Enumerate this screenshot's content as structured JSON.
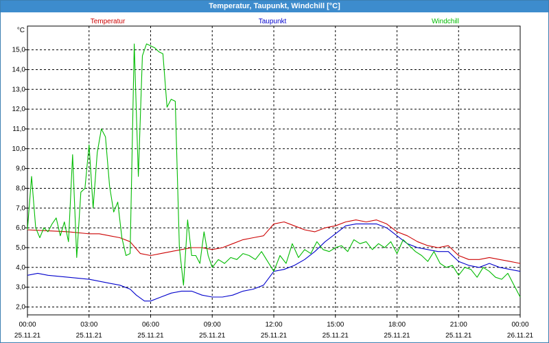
{
  "window": {
    "title": "Temperatur, Taupunkt, Windchill [°C]"
  },
  "chart_data": {
    "type": "line",
    "title": "Temperatur, Taupunkt, Windchill [°C]",
    "ylabel": "°C",
    "ylim": [
      1.6,
      16.2
    ],
    "xlim": [
      0,
      24
    ],
    "grid": true,
    "legend_position": "top",
    "y_ticks": [
      "2,0",
      "3,0",
      "4,0",
      "5,0",
      "6,0",
      "7,0",
      "8,0",
      "9,0",
      "10,0",
      "11,0",
      "12,0",
      "13,0",
      "14,0",
      "15,0"
    ],
    "x_ticks": [
      {
        "time": "00:00",
        "date": "25.11.21"
      },
      {
        "time": "03:00",
        "date": "25.11.21"
      },
      {
        "time": "06:00",
        "date": "25.11.21"
      },
      {
        "time": "09:00",
        "date": "25.11.21"
      },
      {
        "time": "12:00",
        "date": "25.11.21"
      },
      {
        "time": "15:00",
        "date": "25.11.21"
      },
      {
        "time": "18:00",
        "date": "25.11.21"
      },
      {
        "time": "21:00",
        "date": "25.11.21"
      },
      {
        "time": "00:00",
        "date": "26.11.21"
      }
    ],
    "x_unit": "hours since 25.11.21 00:00",
    "series": [
      {
        "name": "Temperatur",
        "color": "#cc0000",
        "points": [
          [
            0,
            5.9
          ],
          [
            1,
            5.85
          ],
          [
            2,
            5.8
          ],
          [
            3,
            5.7
          ],
          [
            3.5,
            5.7
          ],
          [
            4,
            5.6
          ],
          [
            4.5,
            5.5
          ],
          [
            5,
            5.3
          ],
          [
            5.5,
            4.7
          ],
          [
            6,
            4.6
          ],
          [
            6.5,
            4.7
          ],
          [
            7,
            4.8
          ],
          [
            7.5,
            4.9
          ],
          [
            8,
            5.0
          ],
          [
            8.5,
            5.0
          ],
          [
            9,
            4.9
          ],
          [
            9.5,
            5.0
          ],
          [
            10,
            5.2
          ],
          [
            10.5,
            5.4
          ],
          [
            11,
            5.5
          ],
          [
            11.5,
            5.6
          ],
          [
            12,
            6.2
          ],
          [
            12.5,
            6.3
          ],
          [
            13,
            6.1
          ],
          [
            13.5,
            5.9
          ],
          [
            14,
            5.8
          ],
          [
            14.5,
            6.0
          ],
          [
            15,
            6.1
          ],
          [
            15.5,
            6.3
          ],
          [
            16,
            6.4
          ],
          [
            16.5,
            6.3
          ],
          [
            17,
            6.4
          ],
          [
            17.5,
            6.2
          ],
          [
            18,
            5.8
          ],
          [
            18.5,
            5.6
          ],
          [
            19,
            5.3
          ],
          [
            19.5,
            5.1
          ],
          [
            20,
            5.0
          ],
          [
            20.5,
            5.1
          ],
          [
            21,
            4.6
          ],
          [
            21.5,
            4.4
          ],
          [
            22,
            4.4
          ],
          [
            22.5,
            4.5
          ],
          [
            23,
            4.4
          ],
          [
            23.5,
            4.3
          ],
          [
            24,
            4.2
          ]
        ]
      },
      {
        "name": "Taupunkt",
        "color": "#0000cc",
        "points": [
          [
            0,
            3.6
          ],
          [
            0.5,
            3.7
          ],
          [
            1,
            3.6
          ],
          [
            2,
            3.5
          ],
          [
            3,
            3.4
          ],
          [
            4,
            3.2
          ],
          [
            4.5,
            3.1
          ],
          [
            5,
            2.9
          ],
          [
            5.3,
            2.6
          ],
          [
            5.7,
            2.3
          ],
          [
            6,
            2.3
          ],
          [
            6.5,
            2.5
          ],
          [
            7,
            2.7
          ],
          [
            7.5,
            2.8
          ],
          [
            8,
            2.8
          ],
          [
            8.5,
            2.6
          ],
          [
            9,
            2.5
          ],
          [
            9.5,
            2.5
          ],
          [
            10,
            2.6
          ],
          [
            10.5,
            2.8
          ],
          [
            11,
            2.9
          ],
          [
            11.5,
            3.1
          ],
          [
            12,
            3.8
          ],
          [
            12.5,
            3.9
          ],
          [
            13,
            4.1
          ],
          [
            13.5,
            4.4
          ],
          [
            14,
            4.8
          ],
          [
            14.5,
            5.3
          ],
          [
            15,
            5.7
          ],
          [
            15.5,
            6.1
          ],
          [
            16,
            6.2
          ],
          [
            16.5,
            6.2
          ],
          [
            17,
            6.2
          ],
          [
            17.5,
            6.0
          ],
          [
            18,
            5.6
          ],
          [
            18.5,
            5.2
          ],
          [
            19,
            5.0
          ],
          [
            19.5,
            4.9
          ],
          [
            20,
            4.8
          ],
          [
            20.5,
            4.8
          ],
          [
            21,
            4.3
          ],
          [
            21.5,
            4.1
          ],
          [
            22,
            4.0
          ],
          [
            22.5,
            4.2
          ],
          [
            23,
            4.0
          ],
          [
            23.5,
            3.9
          ],
          [
            24,
            3.8
          ]
        ]
      },
      {
        "name": "Windchill",
        "color": "#00bb00",
        "points": [
          [
            0,
            5.9
          ],
          [
            0.2,
            8.6
          ],
          [
            0.4,
            6.0
          ],
          [
            0.6,
            5.5
          ],
          [
            0.8,
            6.0
          ],
          [
            1,
            5.8
          ],
          [
            1.2,
            6.2
          ],
          [
            1.4,
            6.5
          ],
          [
            1.6,
            5.6
          ],
          [
            1.8,
            6.3
          ],
          [
            2,
            5.3
          ],
          [
            2.2,
            9.7
          ],
          [
            2.4,
            4.5
          ],
          [
            2.6,
            7.8
          ],
          [
            2.8,
            8.0
          ],
          [
            3,
            10.2
          ],
          [
            3.2,
            7.0
          ],
          [
            3.4,
            9.8
          ],
          [
            3.6,
            11.0
          ],
          [
            3.8,
            10.6
          ],
          [
            4,
            8.1
          ],
          [
            4.2,
            6.8
          ],
          [
            4.4,
            7.3
          ],
          [
            4.6,
            5.5
          ],
          [
            4.8,
            4.6
          ],
          [
            5,
            4.7
          ],
          [
            5.2,
            15.3
          ],
          [
            5.4,
            8.6
          ],
          [
            5.6,
            14.7
          ],
          [
            5.8,
            15.3
          ],
          [
            6,
            15.2
          ],
          [
            6.2,
            15.1
          ],
          [
            6.4,
            14.9
          ],
          [
            6.6,
            14.8
          ],
          [
            6.8,
            12.1
          ],
          [
            7,
            12.5
          ],
          [
            7.2,
            12.4
          ],
          [
            7.4,
            5.0
          ],
          [
            7.6,
            3.1
          ],
          [
            7.8,
            6.4
          ],
          [
            8,
            4.6
          ],
          [
            8.2,
            4.6
          ],
          [
            8.4,
            4.2
          ],
          [
            8.6,
            5.8
          ],
          [
            8.8,
            4.6
          ],
          [
            9,
            4.0
          ],
          [
            9.3,
            4.4
          ],
          [
            9.6,
            4.2
          ],
          [
            9.9,
            4.5
          ],
          [
            10.2,
            4.4
          ],
          [
            10.5,
            4.7
          ],
          [
            10.8,
            4.6
          ],
          [
            11.1,
            4.4
          ],
          [
            11.4,
            4.8
          ],
          [
            11.7,
            4.3
          ],
          [
            12,
            3.8
          ],
          [
            12.3,
            4.6
          ],
          [
            12.6,
            4.2
          ],
          [
            12.9,
            5.2
          ],
          [
            13.2,
            4.5
          ],
          [
            13.5,
            4.9
          ],
          [
            13.8,
            4.7
          ],
          [
            14.1,
            5.3
          ],
          [
            14.4,
            4.9
          ],
          [
            14.7,
            4.8
          ],
          [
            15,
            5.0
          ],
          [
            15.3,
            5.1
          ],
          [
            15.6,
            4.8
          ],
          [
            15.9,
            5.4
          ],
          [
            16.2,
            5.2
          ],
          [
            16.5,
            5.3
          ],
          [
            16.8,
            4.9
          ],
          [
            17.1,
            5.2
          ],
          [
            17.4,
            5.0
          ],
          [
            17.7,
            5.3
          ],
          [
            18,
            4.7
          ],
          [
            18.3,
            5.4
          ],
          [
            18.6,
            5.1
          ],
          [
            18.9,
            4.8
          ],
          [
            19.2,
            4.6
          ],
          [
            19.5,
            4.3
          ],
          [
            19.8,
            4.8
          ],
          [
            20.1,
            4.2
          ],
          [
            20.4,
            4.0
          ],
          [
            20.7,
            4.1
          ],
          [
            21,
            3.6
          ],
          [
            21.3,
            4.0
          ],
          [
            21.6,
            3.9
          ],
          [
            21.9,
            3.5
          ],
          [
            22.2,
            4.0
          ],
          [
            22.5,
            3.8
          ],
          [
            22.8,
            3.5
          ],
          [
            23.1,
            3.4
          ],
          [
            23.4,
            3.7
          ],
          [
            23.7,
            3.1
          ],
          [
            24,
            2.5
          ]
        ]
      }
    ]
  }
}
